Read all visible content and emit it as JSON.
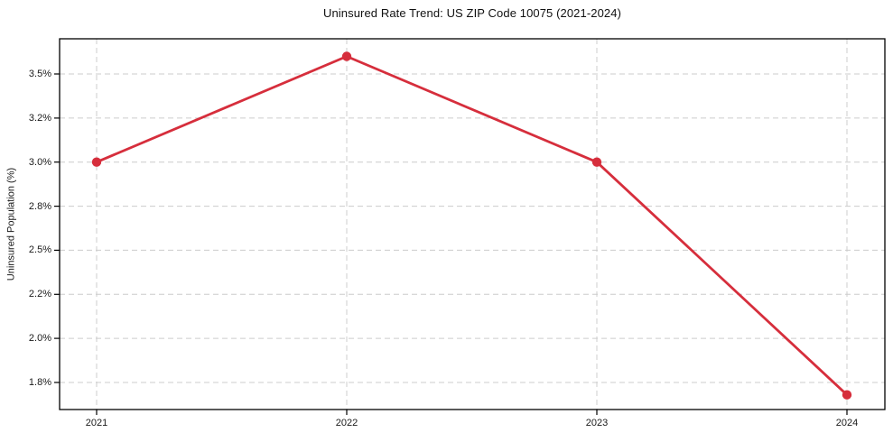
{
  "figure": {
    "background": "#ffffff"
  },
  "chart_data": {
    "type": "line",
    "title": "Uninsured Rate Trend: US ZIP Code 10075 (2021-2024)",
    "ylabel": "Uninsured Population (%)",
    "xlabel": "",
    "categories": [
      "2021",
      "2022",
      "2023",
      "2024"
    ],
    "values": [
      3.0,
      3.6,
      3.0,
      1.68
    ],
    "y_ticks": {
      "values": [
        3.5,
        3.25,
        3.0,
        2.75,
        2.5,
        2.25,
        2.0,
        1.75
      ],
      "labels": [
        "3.5%",
        "3.2%",
        "3.0%",
        "2.8%",
        "2.5%",
        "2.2%",
        "2.0%",
        "1.8%"
      ]
    },
    "ylim": [
      1.6,
      3.7
    ],
    "grid": true,
    "grid_style": "dashed",
    "legend": "none",
    "line_color": "#d62e3c",
    "grid_color": "#cccccc",
    "spine_color": "#000000",
    "text_color": "#1a1a1a",
    "marker": "circle"
  }
}
